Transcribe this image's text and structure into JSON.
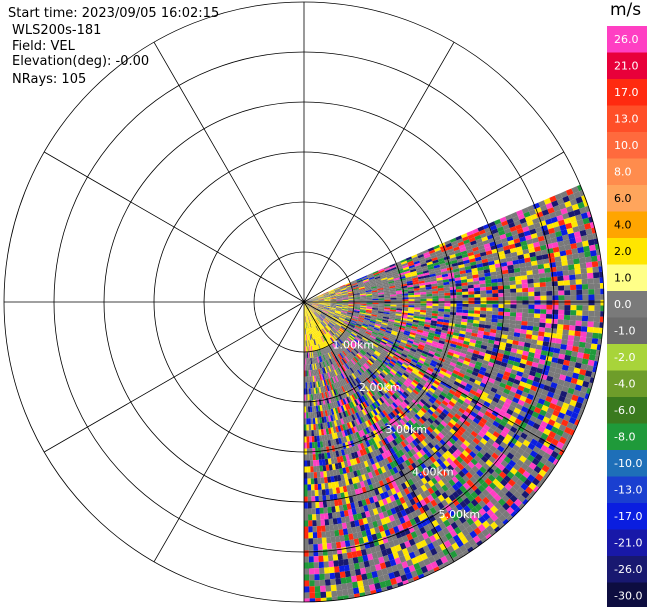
{
  "info": {
    "start_time": "Start time: 2023/09/05 16:02:15",
    "instrument": "WLS200s-181",
    "field": "Field: VEL",
    "elevation": "Elevation(deg): -0.00",
    "nrays": "NRays: 105"
  },
  "colorbar": {
    "unit": "m/s",
    "bins": [
      {
        "label": "26.0",
        "color": "#ff3fc3"
      },
      {
        "label": "21.0",
        "color": "#e8003a"
      },
      {
        "label": "17.0",
        "color": "#ff2a10"
      },
      {
        "label": "13.0",
        "color": "#ff4f28"
      },
      {
        "label": "10.0",
        "color": "#ff6a3d"
      },
      {
        "label": "8.0",
        "color": "#ff8c4d"
      },
      {
        "label": "6.0",
        "color": "#ffa55c"
      },
      {
        "label": "4.0",
        "color": "#ffa500"
      },
      {
        "label": "2.0",
        "color": "#ffe600"
      },
      {
        "label": "1.0",
        "color": "#ffff88"
      },
      {
        "label": "0.0",
        "color": "#7a7a7a"
      },
      {
        "label": "-1.0",
        "color": "#6b6b6b"
      },
      {
        "label": "-2.0",
        "color": "#a8d43a"
      },
      {
        "label": "-4.0",
        "color": "#6e9d2a"
      },
      {
        "label": "-6.0",
        "color": "#3a7a1e"
      },
      {
        "label": "-8.0",
        "color": "#1f9a3a"
      },
      {
        "label": "-10.0",
        "color": "#1e6fb8"
      },
      {
        "label": "-13.0",
        "color": "#1a3fd0"
      },
      {
        "label": "-17.0",
        "color": "#0a1ee0"
      },
      {
        "label": "-21.0",
        "color": "#1818a8"
      },
      {
        "label": "-26.0",
        "color": "#181870"
      },
      {
        "label": "-30.0",
        "color": "#0d0d40"
      }
    ]
  },
  "chart_data": {
    "type": "polar-ppi",
    "title": "",
    "field": "VEL",
    "units": "m/s",
    "range_rings_km": [
      1,
      2,
      3,
      4,
      5,
      6
    ],
    "range_labels": [
      "1.00km",
      "2.00km",
      "3.00km",
      "4.00km",
      "5.00km"
    ],
    "azimuth_spokes_deg": [
      0,
      30,
      60,
      90,
      120,
      150,
      180,
      210,
      240,
      270,
      300,
      330
    ],
    "scan_sector_deg": [
      67,
      180
    ],
    "nrays": 105,
    "color_scale_min": -30.0,
    "color_scale_max": 26.0,
    "near_range_dominant_colors": [
      "#ffe600",
      "#7a7a7a"
    ],
    "far_range_mixed_colors": [
      "#ff3fc3",
      "#0a1ee0",
      "#181870",
      "#7a7a7a",
      "#ff2a10",
      "#ffe600",
      "#1f9a3a"
    ]
  }
}
